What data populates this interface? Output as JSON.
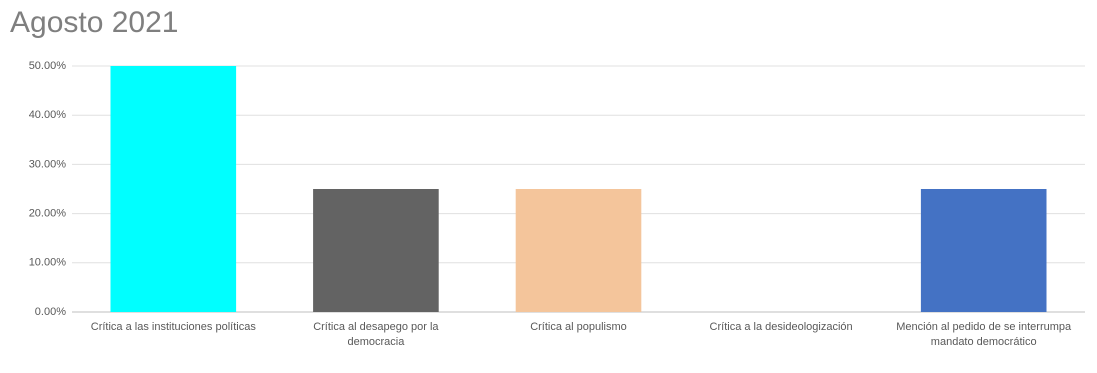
{
  "chart_data": {
    "type": "bar",
    "title": "Agosto 2021",
    "categories": [
      "Crítica a las instituciones políticas",
      "Crítica al desapego por la democracia",
      "Crítica al populismo",
      "Crítica a la desideologización",
      "Mención al pedido de se interrumpa mandato democrático"
    ],
    "values": [
      50,
      25,
      25,
      0,
      25
    ],
    "colors": [
      "#00ffff",
      "#636363",
      "#f4c59b",
      "#a5a5a5",
      "#4472c4"
    ],
    "ylim": [
      0,
      50
    ],
    "yticks": [
      {
        "value": 0,
        "label": "0.00%"
      },
      {
        "value": 10,
        "label": "10.00%"
      },
      {
        "value": 20,
        "label": "20.00%"
      },
      {
        "value": 30,
        "label": "30.00%"
      },
      {
        "value": 40,
        "label": "40.00%"
      },
      {
        "value": 50,
        "label": "50.00%"
      }
    ],
    "grid": true
  }
}
